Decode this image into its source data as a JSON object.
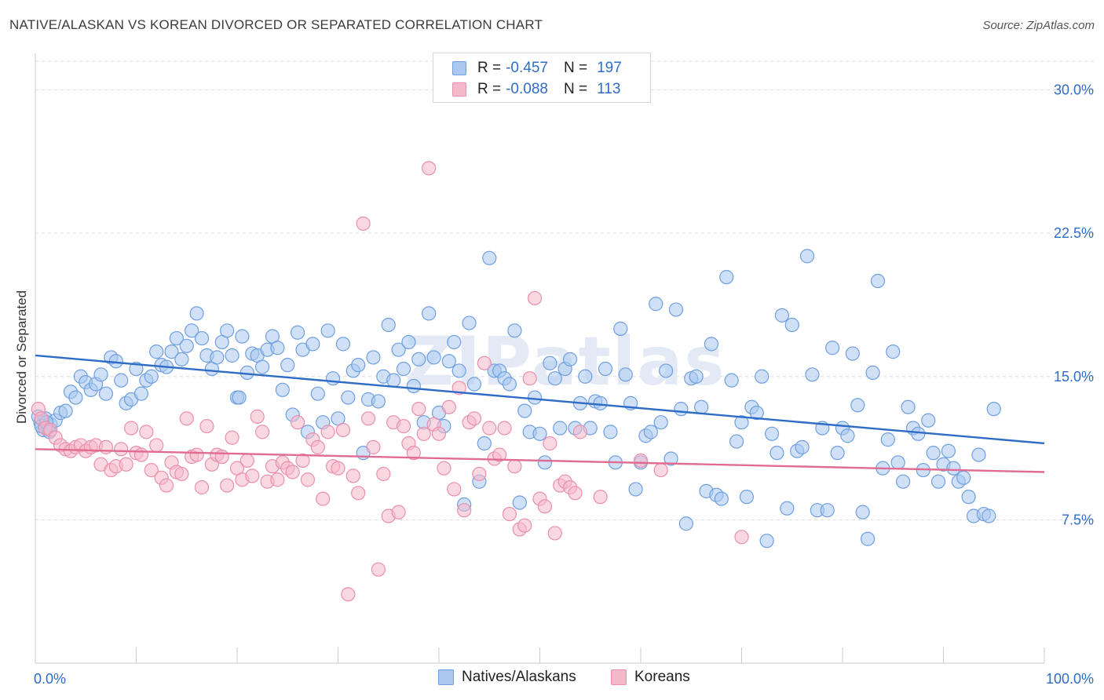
{
  "title": "NATIVE/ALASKAN VS KOREAN DIVORCED OR SEPARATED CORRELATION CHART",
  "source": "Source: ZipAtlas.com",
  "watermark": "ZIPatlas",
  "legend_stats": [
    {
      "r_label": "R =",
      "r_value": "-0.457",
      "n_label": "N =",
      "n_value": "197"
    },
    {
      "r_label": "R =",
      "r_value": "-0.088",
      "n_label": "N =",
      "n_value": "113"
    }
  ],
  "colors": {
    "blue_fill": "#aac8f0",
    "blue_stroke": "#6f9fe0",
    "blue_line": "#2f6cc6",
    "pink_fill": "#f6b8cb",
    "pink_stroke": "#ea8fac",
    "pink_line": "#e06c93",
    "axis_text": "#2f6cc6",
    "grid": "#dddddd"
  },
  "chart_data": {
    "type": "scatter",
    "title": "NATIVE/ALASKAN VS KOREAN DIVORCED OR SEPARATED CORRELATION CHART",
    "xlabel": "",
    "ylabel": "Divorced or Separated",
    "xlim": [
      0,
      100
    ],
    "ylim": [
      0,
      31.5
    ],
    "x_tick_labels": [
      "0.0%",
      "100.0%"
    ],
    "y_ticks": [
      7.5,
      15.0,
      22.5,
      30.0
    ],
    "y_tick_labels": [
      "7.5%",
      "15.0%",
      "22.5%",
      "30.0%"
    ],
    "legend_placement": "bottom-center",
    "series": [
      {
        "name": "Natives/Alaskans",
        "color": "blue",
        "trend": {
          "x": [
            0,
            100
          ],
          "y": [
            16.1,
            11.5
          ]
        },
        "points": [
          [
            0.5,
            12.6
          ],
          [
            0.8,
            12.2
          ],
          [
            1,
            12.8
          ],
          [
            1.2,
            12.3
          ],
          [
            1.5,
            12.5
          ],
          [
            2,
            12.7
          ],
          [
            2.5,
            13.1
          ],
          [
            3,
            13.2
          ],
          [
            3.5,
            14.2
          ],
          [
            4,
            13.9
          ],
          [
            4.5,
            15.0
          ],
          [
            5,
            14.7
          ],
          [
            5.5,
            14.3
          ],
          [
            6,
            14.6
          ],
          [
            6.5,
            15.1
          ],
          [
            7,
            14.1
          ],
          [
            7.5,
            16.0
          ],
          [
            8,
            15.8
          ],
          [
            8.5,
            14.8
          ],
          [
            9,
            13.6
          ],
          [
            9.5,
            13.8
          ],
          [
            10,
            15.4
          ],
          [
            10.5,
            14.1
          ],
          [
            11,
            14.8
          ],
          [
            11.5,
            15.0
          ],
          [
            12,
            16.3
          ],
          [
            12.5,
            15.6
          ],
          [
            13,
            15.5
          ],
          [
            13.5,
            16.3
          ],
          [
            14,
            17.0
          ],
          [
            14.5,
            15.9
          ],
          [
            15,
            16.6
          ],
          [
            15.5,
            17.4
          ],
          [
            16,
            18.3
          ],
          [
            16.5,
            17.0
          ],
          [
            17,
            16.1
          ],
          [
            17.5,
            15.4
          ],
          [
            18,
            16.0
          ],
          [
            18.5,
            16.8
          ],
          [
            19,
            17.4
          ],
          [
            19.5,
            16.1
          ],
          [
            20,
            13.9
          ],
          [
            20.5,
            17.1
          ],
          [
            21,
            15.2
          ],
          [
            21.5,
            16.2
          ],
          [
            22,
            16.1
          ],
          [
            22.5,
            15.5
          ],
          [
            23,
            16.4
          ],
          [
            23.5,
            17.1
          ],
          [
            24,
            16.5
          ],
          [
            24.5,
            14.3
          ],
          [
            25,
            15.6
          ],
          [
            25.5,
            13.0
          ],
          [
            26,
            17.3
          ],
          [
            26.5,
            16.4
          ],
          [
            27,
            12.1
          ],
          [
            27.5,
            16.7
          ],
          [
            28,
            14.1
          ],
          [
            28.5,
            12.6
          ],
          [
            29,
            17.4
          ],
          [
            29.5,
            14.9
          ],
          [
            30,
            12.8
          ],
          [
            30.5,
            16.7
          ],
          [
            31,
            13.9
          ],
          [
            31.5,
            15.3
          ],
          [
            32,
            15.6
          ],
          [
            32.5,
            11.0
          ],
          [
            33,
            13.8
          ],
          [
            33.5,
            16.0
          ],
          [
            34,
            13.7
          ],
          [
            34.5,
            15.0
          ],
          [
            35,
            17.7
          ],
          [
            35.5,
            14.8
          ],
          [
            36,
            16.4
          ],
          [
            36.5,
            15.4
          ],
          [
            37,
            16.8
          ],
          [
            37.5,
            14.5
          ],
          [
            38,
            15.9
          ],
          [
            38.5,
            12.6
          ],
          [
            39,
            18.3
          ],
          [
            39.5,
            16.0
          ],
          [
            40,
            13.1
          ],
          [
            40.5,
            12.4
          ],
          [
            41,
            15.8
          ],
          [
            41.5,
            16.8
          ],
          [
            42,
            15.3
          ],
          [
            42.5,
            8.3
          ],
          [
            43,
            17.8
          ],
          [
            43.5,
            14.6
          ],
          [
            44,
            9.5
          ],
          [
            44.5,
            11.5
          ],
          [
            45,
            21.2
          ],
          [
            45.5,
            15.3
          ],
          [
            46,
            15.3
          ],
          [
            46.5,
            14.9
          ],
          [
            47,
            14.6
          ],
          [
            47.5,
            17.4
          ],
          [
            48,
            8.4
          ],
          [
            48.5,
            13.2
          ],
          [
            49,
            12.1
          ],
          [
            49.5,
            13.9
          ],
          [
            50,
            12.0
          ],
          [
            50.5,
            10.5
          ],
          [
            51,
            15.7
          ],
          [
            51.5,
            14.9
          ],
          [
            52,
            12.3
          ],
          [
            52.5,
            15.4
          ],
          [
            53,
            15.9
          ],
          [
            53.5,
            12.3
          ],
          [
            54,
            13.6
          ],
          [
            54.5,
            15.0
          ],
          [
            55,
            12.3
          ],
          [
            55.5,
            13.7
          ],
          [
            56,
            13.6
          ],
          [
            56.5,
            15.4
          ],
          [
            57,
            12.1
          ],
          [
            57.5,
            10.5
          ],
          [
            58,
            17.5
          ],
          [
            58.5,
            15.1
          ],
          [
            59,
            13.6
          ],
          [
            59.5,
            9.1
          ],
          [
            60,
            10.5
          ],
          [
            60.5,
            11.9
          ],
          [
            61,
            12.1
          ],
          [
            61.5,
            18.8
          ],
          [
            62,
            12.6
          ],
          [
            62.5,
            15.3
          ],
          [
            63,
            10.7
          ],
          [
            63.5,
            18.5
          ],
          [
            64,
            13.3
          ],
          [
            64.5,
            7.3
          ],
          [
            65,
            14.9
          ],
          [
            65.5,
            15.0
          ],
          [
            66,
            13.4
          ],
          [
            66.5,
            9.0
          ],
          [
            67,
            16.7
          ],
          [
            67.5,
            8.8
          ],
          [
            68,
            8.6
          ],
          [
            68.5,
            20.2
          ],
          [
            69,
            14.8
          ],
          [
            69.5,
            11.6
          ],
          [
            70,
            12.6
          ],
          [
            70.5,
            8.7
          ],
          [
            71,
            13.4
          ],
          [
            71.5,
            13.1
          ],
          [
            72,
            15.0
          ],
          [
            72.5,
            6.4
          ],
          [
            73,
            12.0
          ],
          [
            73.5,
            11.0
          ],
          [
            74,
            18.2
          ],
          [
            74.5,
            8.1
          ],
          [
            75,
            17.7
          ],
          [
            75.5,
            11.1
          ],
          [
            76,
            11.3
          ],
          [
            76.5,
            21.3
          ],
          [
            77,
            15.1
          ],
          [
            77.5,
            8.0
          ],
          [
            78,
            12.3
          ],
          [
            78.5,
            8.0
          ],
          [
            79,
            16.5
          ],
          [
            79.5,
            11.0
          ],
          [
            80,
            12.3
          ],
          [
            80.5,
            11.9
          ],
          [
            81,
            16.2
          ],
          [
            81.5,
            13.5
          ],
          [
            82,
            7.9
          ],
          [
            82.5,
            6.5
          ],
          [
            83,
            15.2
          ],
          [
            83.5,
            20.0
          ],
          [
            84,
            10.2
          ],
          [
            84.5,
            11.7
          ],
          [
            85,
            16.3
          ],
          [
            85.5,
            10.5
          ],
          [
            86,
            9.5
          ],
          [
            86.5,
            13.4
          ],
          [
            87,
            12.3
          ],
          [
            87.5,
            12.0
          ],
          [
            88,
            10.1
          ],
          [
            88.5,
            12.7
          ],
          [
            89,
            11.0
          ],
          [
            89.5,
            9.5
          ],
          [
            90,
            10.4
          ],
          [
            90.5,
            11.1
          ],
          [
            91,
            10.2
          ],
          [
            91.5,
            9.5
          ],
          [
            92,
            9.7
          ],
          [
            92.5,
            8.7
          ],
          [
            93,
            7.7
          ],
          [
            93.5,
            10.9
          ],
          [
            94,
            7.8
          ],
          [
            94.5,
            7.7
          ],
          [
            95,
            13.3
          ],
          [
            0.3,
            12.9
          ],
          [
            0.6,
            12.4
          ],
          [
            1.1,
            12.6
          ],
          [
            1.4,
            12.1
          ],
          [
            20.2,
            13.9
          ]
        ]
      },
      {
        "name": "Koreans",
        "color": "pink",
        "trend": {
          "x": [
            0,
            100
          ],
          "y": [
            11.2,
            10.0
          ]
        },
        "points": [
          [
            0.3,
            13.3
          ],
          [
            0.6,
            12.8
          ],
          [
            1,
            12.3
          ],
          [
            1.5,
            12.2
          ],
          [
            2,
            11.8
          ],
          [
            2.5,
            11.4
          ],
          [
            3,
            11.2
          ],
          [
            3.5,
            11.1
          ],
          [
            4,
            11.3
          ],
          [
            4.5,
            11.4
          ],
          [
            5,
            11.1
          ],
          [
            5.5,
            11.3
          ],
          [
            6,
            11.4
          ],
          [
            6.5,
            10.4
          ],
          [
            7,
            11.3
          ],
          [
            7.5,
            10.1
          ],
          [
            8,
            10.3
          ],
          [
            8.5,
            11.2
          ],
          [
            9,
            10.4
          ],
          [
            9.5,
            12.3
          ],
          [
            10,
            11.0
          ],
          [
            10.5,
            10.9
          ],
          [
            11,
            12.1
          ],
          [
            11.5,
            10.1
          ],
          [
            12,
            11.4
          ],
          [
            12.5,
            9.7
          ],
          [
            13,
            9.3
          ],
          [
            13.5,
            10.5
          ],
          [
            14,
            10.0
          ],
          [
            14.5,
            9.9
          ],
          [
            15,
            12.8
          ],
          [
            15.5,
            10.8
          ],
          [
            16,
            10.9
          ],
          [
            16.5,
            9.2
          ],
          [
            17,
            12.4
          ],
          [
            17.5,
            10.4
          ],
          [
            18,
            10.9
          ],
          [
            18.5,
            10.8
          ],
          [
            19,
            9.3
          ],
          [
            19.5,
            11.8
          ],
          [
            20,
            10.2
          ],
          [
            20.5,
            9.6
          ],
          [
            21,
            10.6
          ],
          [
            21.5,
            9.8
          ],
          [
            22,
            12.9
          ],
          [
            22.5,
            12.1
          ],
          [
            23,
            9.5
          ],
          [
            23.5,
            10.3
          ],
          [
            24,
            9.6
          ],
          [
            24.5,
            10.5
          ],
          [
            25,
            10.2
          ],
          [
            25.5,
            10.0
          ],
          [
            26,
            12.6
          ],
          [
            26.5,
            10.6
          ],
          [
            27,
            9.6
          ],
          [
            27.5,
            11.7
          ],
          [
            28,
            11.3
          ],
          [
            28.5,
            8.6
          ],
          [
            29,
            12.1
          ],
          [
            29.5,
            10.3
          ],
          [
            30,
            10.2
          ],
          [
            30.5,
            12.2
          ],
          [
            31,
            3.6
          ],
          [
            31.5,
            9.8
          ],
          [
            32,
            8.9
          ],
          [
            32.5,
            23.0
          ],
          [
            33,
            12.8
          ],
          [
            33.5,
            11.3
          ],
          [
            34,
            4.9
          ],
          [
            34.5,
            9.9
          ],
          [
            35,
            7.7
          ],
          [
            35.5,
            12.6
          ],
          [
            36,
            7.9
          ],
          [
            36.5,
            12.4
          ],
          [
            37,
            11.5
          ],
          [
            37.5,
            11.0
          ],
          [
            38,
            13.3
          ],
          [
            38.5,
            12.0
          ],
          [
            39,
            25.9
          ],
          [
            39.5,
            12.5
          ],
          [
            40,
            12.0
          ],
          [
            40.5,
            10.2
          ],
          [
            41,
            13.4
          ],
          [
            41.5,
            9.1
          ],
          [
            42,
            14.4
          ],
          [
            42.5,
            8.0
          ],
          [
            43,
            12.6
          ],
          [
            43.5,
            12.8
          ],
          [
            44,
            9.9
          ],
          [
            44.5,
            15.7
          ],
          [
            45,
            12.3
          ],
          [
            45.5,
            10.7
          ],
          [
            46,
            10.9
          ],
          [
            46.5,
            12.3
          ],
          [
            47,
            7.8
          ],
          [
            47.5,
            10.3
          ],
          [
            48,
            7.0
          ],
          [
            48.5,
            7.2
          ],
          [
            49,
            14.9
          ],
          [
            49.5,
            19.1
          ],
          [
            50,
            8.6
          ],
          [
            50.5,
            8.2
          ],
          [
            51,
            11.5
          ],
          [
            51.5,
            6.8
          ],
          [
            52,
            9.3
          ],
          [
            52.5,
            9.5
          ],
          [
            53,
            9.2
          ],
          [
            53.5,
            8.9
          ],
          [
            54,
            12.1
          ],
          [
            56,
            8.7
          ],
          [
            60,
            10.6
          ],
          [
            62,
            10.1
          ],
          [
            70,
            6.6
          ]
        ]
      }
    ]
  },
  "bottom_legend": [
    {
      "label": "Natives/Alaskans"
    },
    {
      "label": "Koreans"
    }
  ]
}
